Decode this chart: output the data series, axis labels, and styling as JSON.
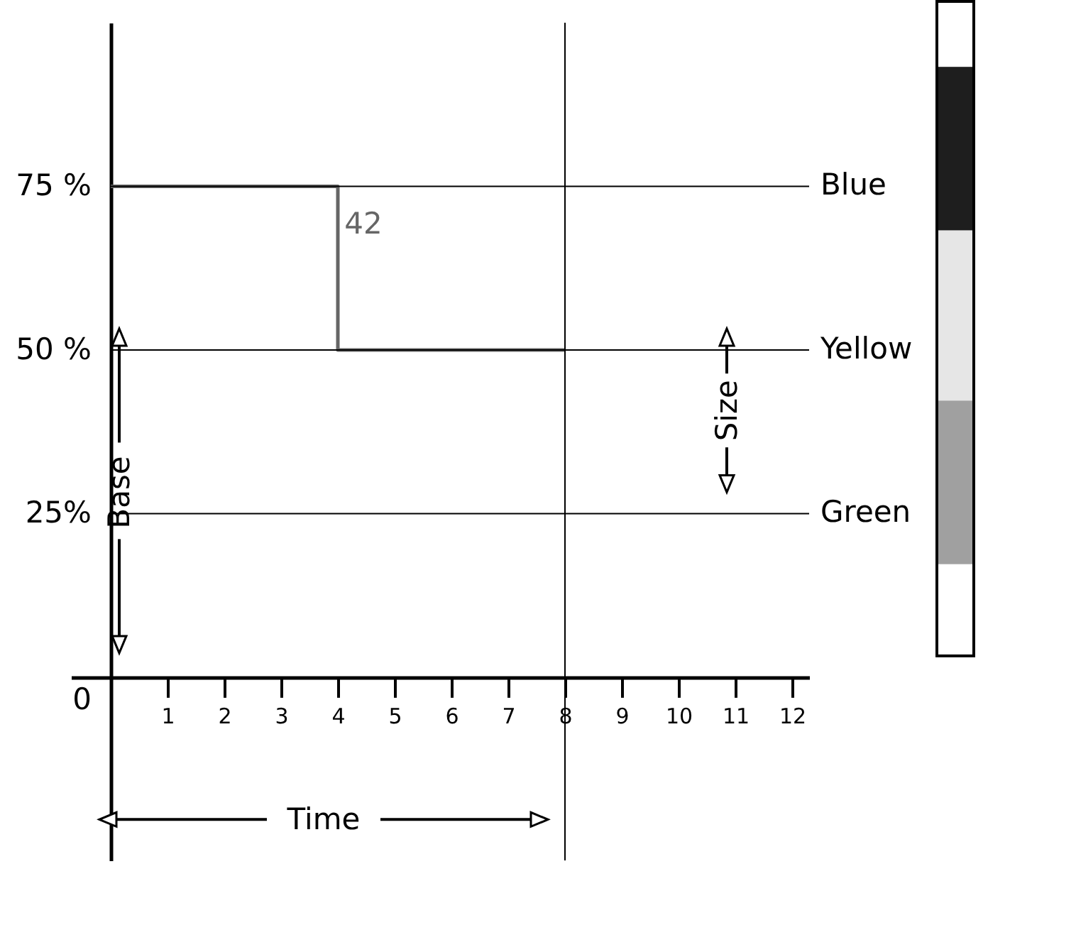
{
  "chart_data": {
    "type": "step",
    "xlim": [
      -0.7,
      12.3
    ],
    "ylim": [
      -28,
      100
    ],
    "xticks": [
      1,
      2,
      3,
      4,
      5,
      6,
      7,
      8,
      9,
      10,
      11,
      12
    ],
    "yticks": [
      {
        "value": 0,
        "label": "0"
      },
      {
        "value": 25,
        "label": "25%"
      },
      {
        "value": 50,
        "label": "50 %"
      },
      {
        "value": 75,
        "label": "75 %"
      }
    ],
    "series": [
      {
        "color": "#666666",
        "x": [
          0,
          4,
          8
        ],
        "values": [
          75,
          50,
          50
        ]
      }
    ],
    "ref_lines": [
      {
        "axis": "y",
        "value": 75,
        "label": "Blue"
      },
      {
        "axis": "y",
        "value": 50,
        "label": "Yellow"
      },
      {
        "axis": "y",
        "value": 25,
        "label": "Green"
      },
      {
        "axis": "x",
        "value": 8,
        "label": null
      }
    ],
    "annotations": [
      "42",
      {
        "text": "Base",
        "x": 0.4,
        "y": 25
      },
      "Size",
      "Time"
    ]
  }
}
